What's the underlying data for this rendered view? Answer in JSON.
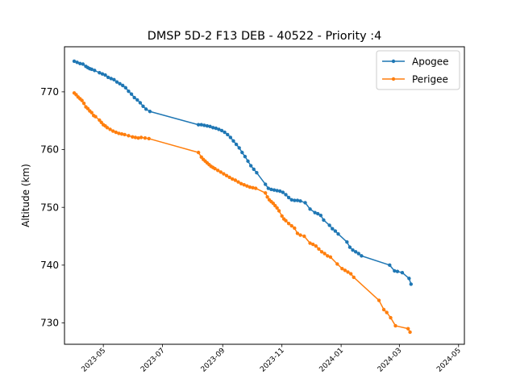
{
  "chart_data": {
    "type": "line",
    "title": "DMSP 5D-2 F13 DEB - 40522 - Priority :4",
    "xlabel": "",
    "ylabel": "Altitude (km)",
    "xlim": [
      "2023-03-22",
      "2024-05-07"
    ],
    "ylim": [
      726.3,
      777.8
    ],
    "x_ticks": [
      "2023-05",
      "2023-07",
      "2023-09",
      "2023-11",
      "2024-01",
      "2024-03",
      "2024-05"
    ],
    "y_ticks": [
      730,
      740,
      750,
      760,
      770
    ],
    "grid": false,
    "legend": {
      "placement": "top-right",
      "entries": [
        "Apogee",
        "Perigee"
      ]
    },
    "series": [
      {
        "name": "Apogee",
        "color": "#1f77b4",
        "points": [
          [
            "2023-04-01",
            775.3
          ],
          [
            "2023-04-04",
            775.1
          ],
          [
            "2023-04-07",
            774.9
          ],
          [
            "2023-04-10",
            774.8
          ],
          [
            "2023-04-13",
            774.4
          ],
          [
            "2023-04-15",
            774.2
          ],
          [
            "2023-04-17",
            774.0
          ],
          [
            "2023-04-19",
            773.9
          ],
          [
            "2023-04-22",
            773.7
          ],
          [
            "2023-04-27",
            773.3
          ],
          [
            "2023-04-30",
            773.1
          ],
          [
            "2023-05-03",
            772.9
          ],
          [
            "2023-05-06",
            772.5
          ],
          [
            "2023-05-09",
            772.3
          ],
          [
            "2023-05-12",
            772.1
          ],
          [
            "2023-05-15",
            771.7
          ],
          [
            "2023-05-18",
            771.4
          ],
          [
            "2023-05-21",
            771.1
          ],
          [
            "2023-05-24",
            770.7
          ],
          [
            "2023-05-27",
            770.1
          ],
          [
            "2023-05-30",
            769.6
          ],
          [
            "2023-06-02",
            769.0
          ],
          [
            "2023-06-05",
            768.6
          ],
          [
            "2023-06-08",
            768.1
          ],
          [
            "2023-06-11",
            767.5
          ],
          [
            "2023-06-14",
            767.0
          ],
          [
            "2023-06-18",
            766.6
          ],
          [
            "2023-08-07",
            764.3
          ],
          [
            "2023-08-10",
            764.3
          ],
          [
            "2023-08-13",
            764.2
          ],
          [
            "2023-08-16",
            764.1
          ],
          [
            "2023-08-19",
            764.0
          ],
          [
            "2023-08-22",
            763.8
          ],
          [
            "2023-08-25",
            763.7
          ],
          [
            "2023-08-28",
            763.5
          ],
          [
            "2023-08-31",
            763.3
          ],
          [
            "2023-09-03",
            763.0
          ],
          [
            "2023-09-06",
            762.6
          ],
          [
            "2023-09-09",
            762.1
          ],
          [
            "2023-09-12",
            761.5
          ],
          [
            "2023-09-15",
            760.9
          ],
          [
            "2023-09-18",
            760.3
          ],
          [
            "2023-09-21",
            759.5
          ],
          [
            "2023-09-24",
            758.8
          ],
          [
            "2023-09-27",
            758.0
          ],
          [
            "2023-09-30",
            757.2
          ],
          [
            "2023-10-03",
            756.6
          ],
          [
            "2023-10-06",
            756.0
          ],
          [
            "2023-10-15",
            754.0
          ],
          [
            "2023-10-18",
            753.3
          ],
          [
            "2023-10-21",
            753.1
          ],
          [
            "2023-10-24",
            753.0
          ],
          [
            "2023-10-27",
            752.9
          ],
          [
            "2023-10-30",
            752.8
          ],
          [
            "2023-11-02",
            752.6
          ],
          [
            "2023-11-05",
            752.2
          ],
          [
            "2023-11-08",
            751.7
          ],
          [
            "2023-11-11",
            751.3
          ],
          [
            "2023-11-14",
            751.2
          ],
          [
            "2023-11-17",
            751.2
          ],
          [
            "2023-11-20",
            751.1
          ],
          [
            "2023-11-25",
            750.8
          ],
          [
            "2023-11-30",
            749.7
          ],
          [
            "2023-12-05",
            749.1
          ],
          [
            "2023-12-08",
            748.9
          ],
          [
            "2023-12-11",
            748.6
          ],
          [
            "2023-12-14",
            747.8
          ],
          [
            "2023-12-20",
            746.9
          ],
          [
            "2023-12-23",
            746.3
          ],
          [
            "2023-12-26",
            745.9
          ],
          [
            "2023-12-29",
            745.4
          ],
          [
            "2024-01-07",
            744.0
          ],
          [
            "2024-01-10",
            743.1
          ],
          [
            "2024-01-13",
            742.6
          ],
          [
            "2024-01-16",
            742.3
          ],
          [
            "2024-01-19",
            742.0
          ],
          [
            "2024-01-22",
            741.6
          ],
          [
            "2024-02-20",
            740.0
          ],
          [
            "2024-02-25",
            739.0
          ],
          [
            "2024-02-28",
            738.9
          ],
          [
            "2024-03-04",
            738.7
          ],
          [
            "2024-03-11",
            737.7
          ],
          [
            "2024-03-13",
            736.7
          ]
        ]
      },
      {
        "name": "Perigee",
        "color": "#ff7f0e",
        "points": [
          [
            "2023-04-01",
            769.8
          ],
          [
            "2023-04-03",
            769.5
          ],
          [
            "2023-04-05",
            769.1
          ],
          [
            "2023-04-07",
            768.8
          ],
          [
            "2023-04-09",
            768.5
          ],
          [
            "2023-04-11",
            768.0
          ],
          [
            "2023-04-13",
            767.4
          ],
          [
            "2023-04-15",
            767.1
          ],
          [
            "2023-04-17",
            766.7
          ],
          [
            "2023-04-19",
            766.4
          ],
          [
            "2023-04-21",
            765.9
          ],
          [
            "2023-04-23",
            765.7
          ],
          [
            "2023-04-27",
            765.1
          ],
          [
            "2023-04-29",
            764.7
          ],
          [
            "2023-05-01",
            764.3
          ],
          [
            "2023-05-03",
            764.1
          ],
          [
            "2023-05-05",
            763.8
          ],
          [
            "2023-05-08",
            763.5
          ],
          [
            "2023-05-11",
            763.2
          ],
          [
            "2023-05-14",
            763.0
          ],
          [
            "2023-05-17",
            762.8
          ],
          [
            "2023-05-20",
            762.7
          ],
          [
            "2023-05-23",
            762.6
          ],
          [
            "2023-05-27",
            762.4
          ],
          [
            "2023-05-31",
            762.2
          ],
          [
            "2023-06-03",
            762.1
          ],
          [
            "2023-06-06",
            762.0
          ],
          [
            "2023-06-09",
            762.1
          ],
          [
            "2023-06-13",
            762.0
          ],
          [
            "2023-06-17",
            761.9
          ],
          [
            "2023-08-07",
            759.5
          ],
          [
            "2023-08-10",
            758.7
          ],
          [
            "2023-08-12",
            758.3
          ],
          [
            "2023-08-14",
            758.0
          ],
          [
            "2023-08-16",
            757.7
          ],
          [
            "2023-08-18",
            757.4
          ],
          [
            "2023-08-20",
            757.1
          ],
          [
            "2023-08-22",
            756.9
          ],
          [
            "2023-08-24",
            756.7
          ],
          [
            "2023-08-27",
            756.4
          ],
          [
            "2023-08-30",
            756.1
          ],
          [
            "2023-09-02",
            755.8
          ],
          [
            "2023-09-05",
            755.5
          ],
          [
            "2023-09-08",
            755.2
          ],
          [
            "2023-09-11",
            754.9
          ],
          [
            "2023-09-14",
            754.7
          ],
          [
            "2023-09-17",
            754.4
          ],
          [
            "2023-09-20",
            754.1
          ],
          [
            "2023-09-23",
            753.9
          ],
          [
            "2023-09-26",
            753.7
          ],
          [
            "2023-09-29",
            753.5
          ],
          [
            "2023-10-02",
            753.4
          ],
          [
            "2023-10-05",
            753.3
          ],
          [
            "2023-10-15",
            752.5
          ],
          [
            "2023-10-17",
            751.8
          ],
          [
            "2023-10-19",
            751.3
          ],
          [
            "2023-10-21",
            751.0
          ],
          [
            "2023-10-23",
            750.7
          ],
          [
            "2023-10-25",
            750.3
          ],
          [
            "2023-10-27",
            749.9
          ],
          [
            "2023-10-29",
            749.4
          ],
          [
            "2023-11-01",
            748.5
          ],
          [
            "2023-11-03",
            748.0
          ],
          [
            "2023-11-05",
            747.7
          ],
          [
            "2023-11-08",
            747.2
          ],
          [
            "2023-11-11",
            746.8
          ],
          [
            "2023-11-14",
            746.4
          ],
          [
            "2023-11-17",
            745.5
          ],
          [
            "2023-11-20",
            745.2
          ],
          [
            "2023-11-24",
            745.0
          ],
          [
            "2023-11-30",
            743.8
          ],
          [
            "2023-12-03",
            743.6
          ],
          [
            "2023-12-06",
            743.3
          ],
          [
            "2023-12-09",
            742.8
          ],
          [
            "2023-12-12",
            742.3
          ],
          [
            "2023-12-15",
            742.0
          ],
          [
            "2023-12-18",
            741.6
          ],
          [
            "2023-12-21",
            741.4
          ],
          [
            "2023-12-28",
            740.2
          ],
          [
            "2024-01-02",
            739.4
          ],
          [
            "2024-01-05",
            739.1
          ],
          [
            "2024-01-08",
            738.8
          ],
          [
            "2024-01-11",
            738.5
          ],
          [
            "2024-01-14",
            737.9
          ],
          [
            "2024-02-09",
            733.9
          ],
          [
            "2024-02-14",
            732.3
          ],
          [
            "2024-02-17",
            731.8
          ],
          [
            "2024-02-21",
            730.9
          ],
          [
            "2024-02-26",
            729.5
          ],
          [
            "2024-03-10",
            729.0
          ],
          [
            "2024-03-12",
            728.4
          ]
        ]
      }
    ]
  }
}
